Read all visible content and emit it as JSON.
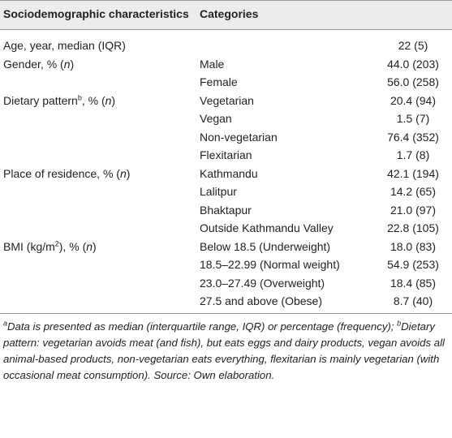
{
  "table": {
    "header": [
      "Sociodemographic characteristics",
      "Categories"
    ],
    "rows": [
      {
        "label": [
          {
            "text": "Age, year, median (IQR)"
          }
        ],
        "category": null,
        "value": "22 (5)"
      },
      {
        "label": [
          {
            "text": "Gender, % ("
          },
          {
            "text": "n",
            "italic": true
          },
          {
            "text": ")"
          }
        ],
        "category": "Male",
        "value": "44.0 (203)"
      },
      {
        "label": null,
        "category": "Female",
        "value": "56.0 (258)"
      },
      {
        "label": [
          {
            "text": "Dietary pattern"
          },
          {
            "text": "b",
            "sup": true
          },
          {
            "text": ", % ("
          },
          {
            "text": "n",
            "italic": true
          },
          {
            "text": ")"
          }
        ],
        "category": "Vegetarian",
        "value": "20.4 (94)"
      },
      {
        "label": null,
        "category": "Vegan",
        "value": "1.5 (7)"
      },
      {
        "label": null,
        "category": "Non-vegetarian",
        "value": "76.4 (352)"
      },
      {
        "label": null,
        "category": "Flexitarian",
        "value": "1.7 (8)"
      },
      {
        "label": [
          {
            "text": "Place of residence, % ("
          },
          {
            "text": "n",
            "italic": true
          },
          {
            "text": ")"
          }
        ],
        "category": "Kathmandu",
        "value": "42.1 (194)"
      },
      {
        "label": null,
        "category": "Lalitpur",
        "value": "14.2 (65)"
      },
      {
        "label": null,
        "category": "Bhaktapur",
        "value": "21.0 (97)"
      },
      {
        "label": null,
        "category": "Outside Kathmandu Valley",
        "value": "22.8 (105)"
      },
      {
        "label": [
          {
            "text": "BMI (kg/m"
          },
          {
            "text": "2",
            "sup": true
          },
          {
            "text": "), % ("
          },
          {
            "text": "n",
            "italic": true
          },
          {
            "text": ")"
          }
        ],
        "category": "Below 18.5 (Underweight)",
        "value": "18.0 (83)"
      },
      {
        "label": null,
        "category": "18.5–22.99 (Normal weight)",
        "value": "54.9 (253)"
      },
      {
        "label": null,
        "category": "23.0–27.49 (Overweight)",
        "value": "18.4 (85)"
      },
      {
        "label": null,
        "category": "27.5 and above (Obese)",
        "value": "8.7 (40)"
      }
    ],
    "footnote": [
      {
        "text": "a",
        "sup": true
      },
      {
        "text": "Data is presented as median (interquartile range, IQR) or percentage (frequency); "
      },
      {
        "text": "b",
        "sup": true
      },
      {
        "text": "Dietary pattern: vegetarian avoids meat (and fish), but eats eggs and dairy products, vegan avoids all animal-based products, non-vegetarian eats everything, flexitarian is mainly vegetarian (with occasional meat consumption). Source: Own elaboration."
      }
    ]
  }
}
